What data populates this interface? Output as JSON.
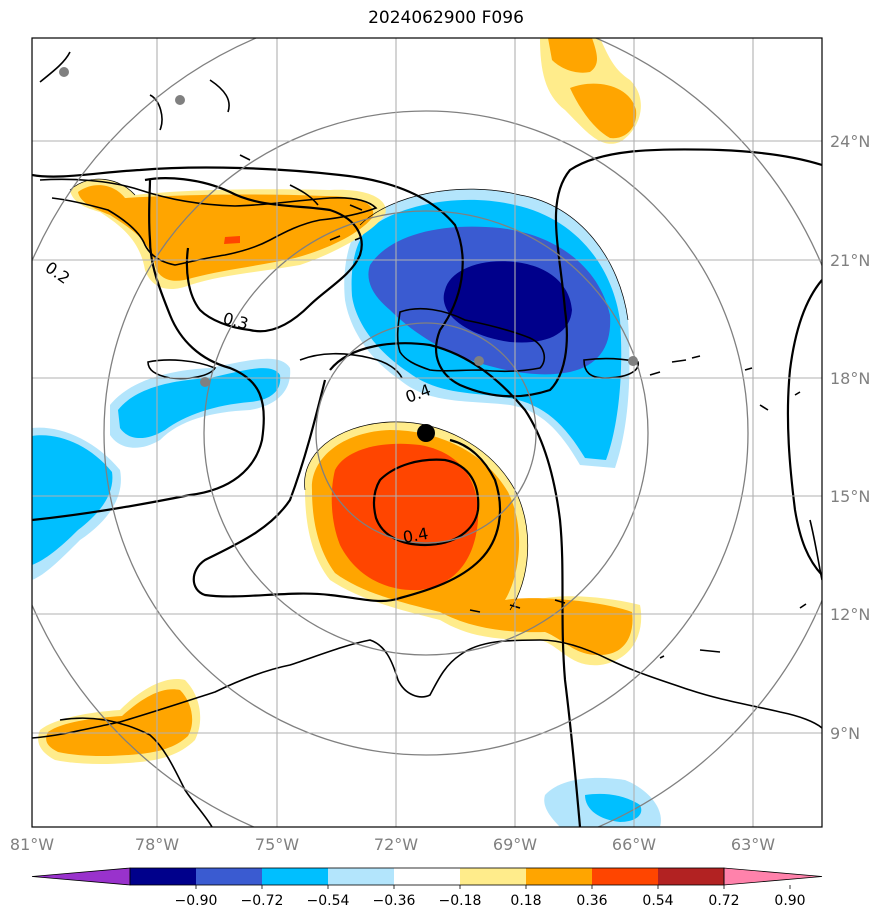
{
  "title": "2024062900 F096",
  "map": {
    "lon_labels": [
      "81°W",
      "78°W",
      "75°W",
      "72°W",
      "69°W",
      "66°W",
      "63°W"
    ],
    "lat_labels": [
      "24°N",
      "21°N",
      "18°N",
      "15°N",
      "12°N",
      "9°N"
    ],
    "contour_labels": [
      "0.2",
      "0.3",
      "0.4",
      "0.4"
    ],
    "colors": {
      "blue_dark": "#00008b",
      "blue_mid": "#3a5bd1",
      "blue_bright": "#00bfff",
      "blue_light": "#b3e5fc",
      "yellow": "#ffec8b",
      "orange": "#ffa500",
      "orange_red": "#ff4500",
      "gray_point": "#808080",
      "center_point": "#000000"
    }
  },
  "colorbar": {
    "ticks": [
      "−0.90",
      "−0.72",
      "−0.54",
      "−0.36",
      "−0.18",
      "0.18",
      "0.36",
      "0.54",
      "0.72",
      "0.90"
    ],
    "colors": [
      "#9932cc",
      "#00008b",
      "#3a5bd1",
      "#00bfff",
      "#b3e5fc",
      "#ffffff",
      "#ffec8b",
      "#ffa500",
      "#ff4500",
      "#b22222",
      "#ff82ab"
    ]
  }
}
